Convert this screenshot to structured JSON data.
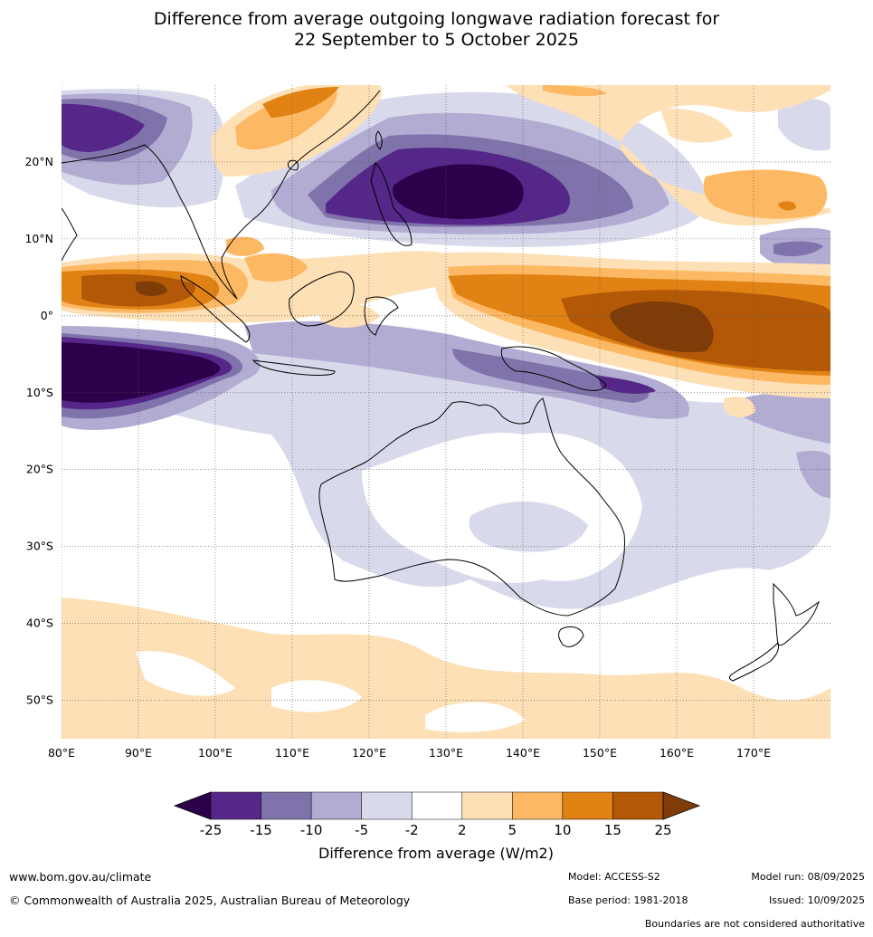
{
  "title": {
    "line1": "Difference from average outgoing longwave radiation forecast for",
    "line2": "22 September to 5 October 2025"
  },
  "map": {
    "projection": "equirectangular",
    "lon_range": [
      80,
      180
    ],
    "lat_range": [
      -55,
      30
    ],
    "lon_ticks": [
      "80°E",
      "90°E",
      "100°E",
      "110°E",
      "120°E",
      "130°E",
      "140°E",
      "150°E",
      "160°E",
      "170°E"
    ],
    "lat_ticks": [
      "20°N",
      "10°N",
      "0°",
      "10°S",
      "20°S",
      "30°S",
      "40°S",
      "50°S"
    ],
    "gridlines": "on",
    "regions_visible": [
      "Australia",
      "Indonesia",
      "Philippines",
      "Papua New Guinea",
      "New Zealand",
      "Southeast Asia"
    ]
  },
  "colorbar": {
    "labels": [
      "-25",
      "-15",
      "-10",
      "-5",
      "-2",
      "2",
      "5",
      "10",
      "15",
      "25"
    ],
    "colors": [
      "#2d004b",
      "#542788",
      "#8073ac",
      "#b2abd2",
      "#d8daeb",
      "#ffffff",
      "#fee0b6",
      "#fdb863",
      "#e08214",
      "#b35806",
      "#7f3b08"
    ],
    "title": "Difference from average (W/m2)",
    "extend": "both"
  },
  "footer": {
    "website": "www.bom.gov.au/climate",
    "copyright": "© Commonwealth of Australia 2025, Australian Bureau of Meteorology",
    "model": "Model: ACCESS-S2",
    "base_period": "Base period: 1981-2018",
    "model_run": "Model run: 08/09/2025",
    "issued": "Issued: 10/09/2025",
    "disclaimer": "Boundaries are not considered authoritative"
  }
}
